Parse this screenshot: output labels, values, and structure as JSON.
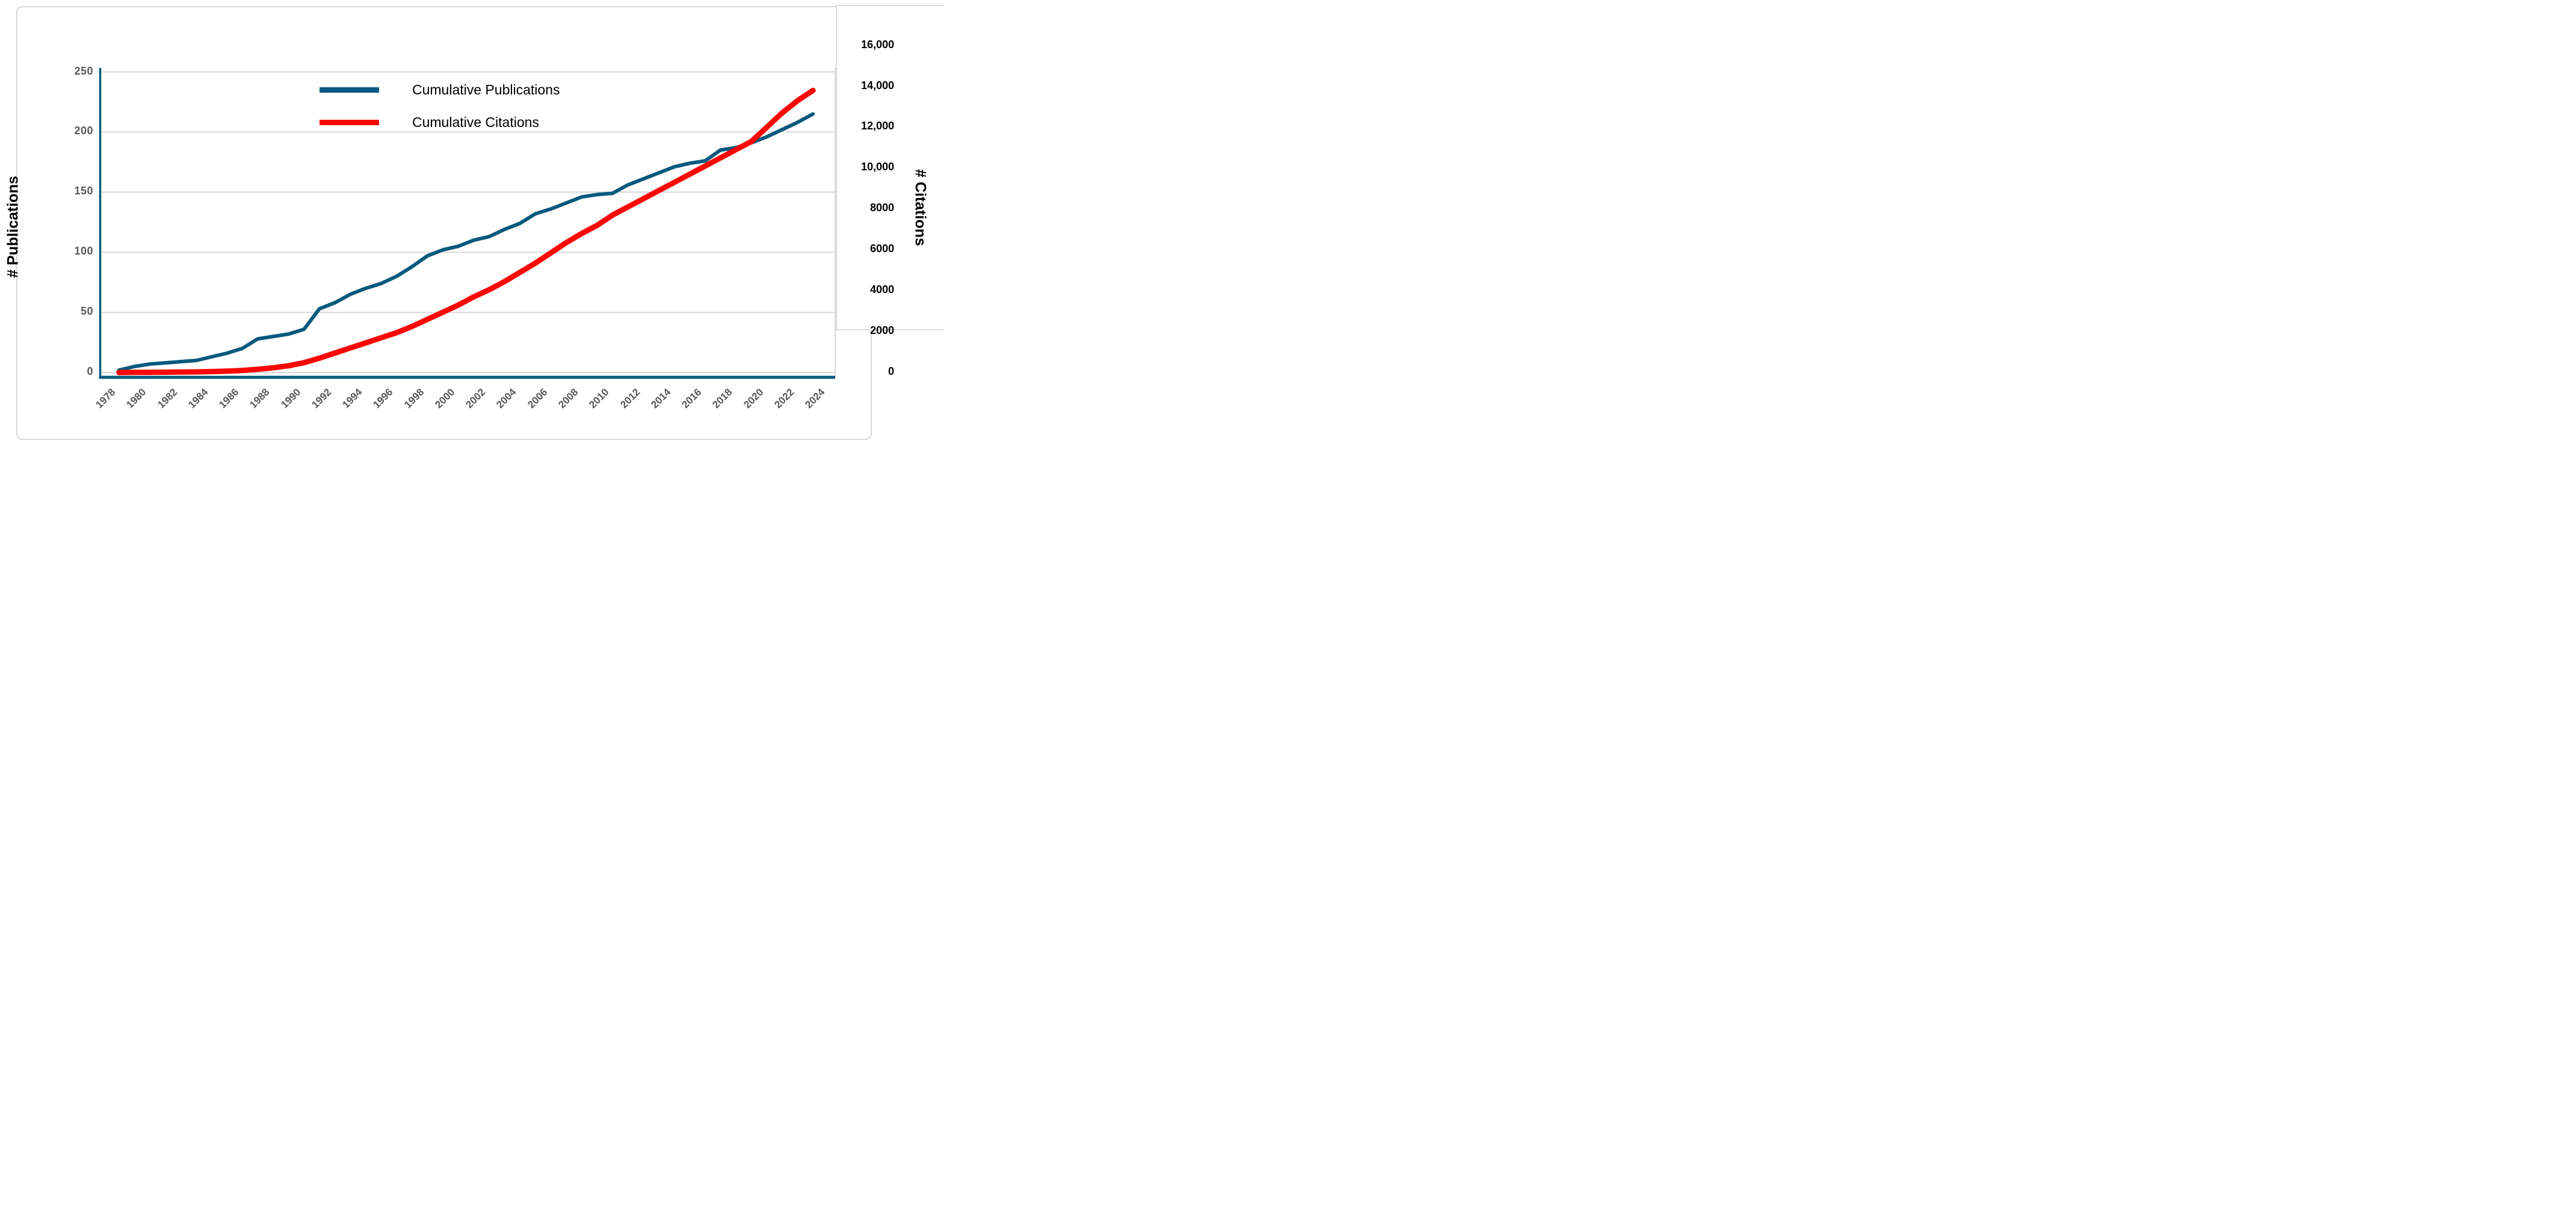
{
  "chart_data": {
    "type": "line",
    "title": "",
    "grid": "horizontal",
    "legend_position": "top-center-inside",
    "x": [
      1979,
      1980,
      1981,
      1982,
      1983,
      1984,
      1985,
      1986,
      1987,
      1988,
      1989,
      1990,
      1991,
      1992,
      1993,
      1994,
      1995,
      1996,
      1997,
      1998,
      1999,
      2000,
      2001,
      2002,
      2003,
      2004,
      2005,
      2006,
      2007,
      2008,
      2009,
      2010,
      2011,
      2012,
      2013,
      2014,
      2015,
      2016,
      2017,
      2018,
      2019,
      2020,
      2021,
      2022,
      2023,
      2024
    ],
    "series": [
      {
        "name": "Cumulative Publications",
        "axis": "left",
        "color": "#05597d",
        "stroke_width": 6,
        "values": [
          2,
          5,
          7,
          8,
          9,
          10,
          13,
          16,
          20,
          28,
          30,
          32,
          36,
          53,
          58,
          65,
          70,
          74,
          80,
          88,
          97,
          102,
          105,
          110,
          113,
          119,
          124,
          132,
          136,
          141,
          146,
          148,
          149,
          156,
          161,
          166,
          171,
          174,
          176,
          185,
          187,
          191,
          196,
          202,
          208,
          215
        ]
      },
      {
        "name": "Cumulative Citations",
        "axis": "right",
        "color": "#fb0505",
        "stroke_width": 9,
        "values": [
          0,
          5,
          10,
          15,
          20,
          30,
          45,
          65,
          100,
          160,
          230,
          330,
          480,
          700,
          950,
          1200,
          1450,
          1700,
          1950,
          2250,
          2600,
          2950,
          3300,
          3700,
          4050,
          4450,
          4900,
          5350,
          5850,
          6350,
          6800,
          7200,
          7700,
          8100,
          8500,
          8900,
          9300,
          9700,
          10100,
          10500,
          10900,
          11300,
          12000,
          12700,
          13300,
          13800
        ]
      }
    ],
    "x_axis": {
      "tick_labels": [
        "1978",
        "1980",
        "1982",
        "1984",
        "1986",
        "1988",
        "1990",
        "1992",
        "1994",
        "1996",
        "1998",
        "2000",
        "2002",
        "2004",
        "2006",
        "2008",
        "2010",
        "2012",
        "2014",
        "2016",
        "2018",
        "2020",
        "2022",
        "2024"
      ],
      "tick_years": [
        1978,
        1980,
        1982,
        1984,
        1986,
        1988,
        1990,
        1992,
        1994,
        1996,
        1998,
        2000,
        2002,
        2004,
        2006,
        2008,
        2010,
        2012,
        2014,
        2016,
        2018,
        2020,
        2022,
        2024
      ],
      "range": [
        1978,
        2025.5
      ]
    },
    "left_axis": {
      "title": "# Publications",
      "ticks": [
        0,
        50,
        100,
        150,
        200,
        250
      ],
      "tick_labels": [
        "0",
        "50",
        "100",
        "150",
        "200",
        "250"
      ],
      "range": [
        0,
        250
      ]
    },
    "right_axis": {
      "title": "# Citations",
      "ticks": [
        0,
        2000,
        4000,
        6000,
        8000,
        10000,
        12000,
        14000,
        16000
      ],
      "tick_labels": [
        "0",
        "2000",
        "4000",
        "6000",
        "8000",
        "10,000",
        "12,000",
        "14,000",
        "16,000"
      ],
      "range": [
        0,
        16000
      ]
    },
    "colors": {
      "gridline": "#d9d9d9",
      "axis_line": "#05597d",
      "tick_text": "#595959",
      "right_tick_text": "#000000"
    }
  }
}
